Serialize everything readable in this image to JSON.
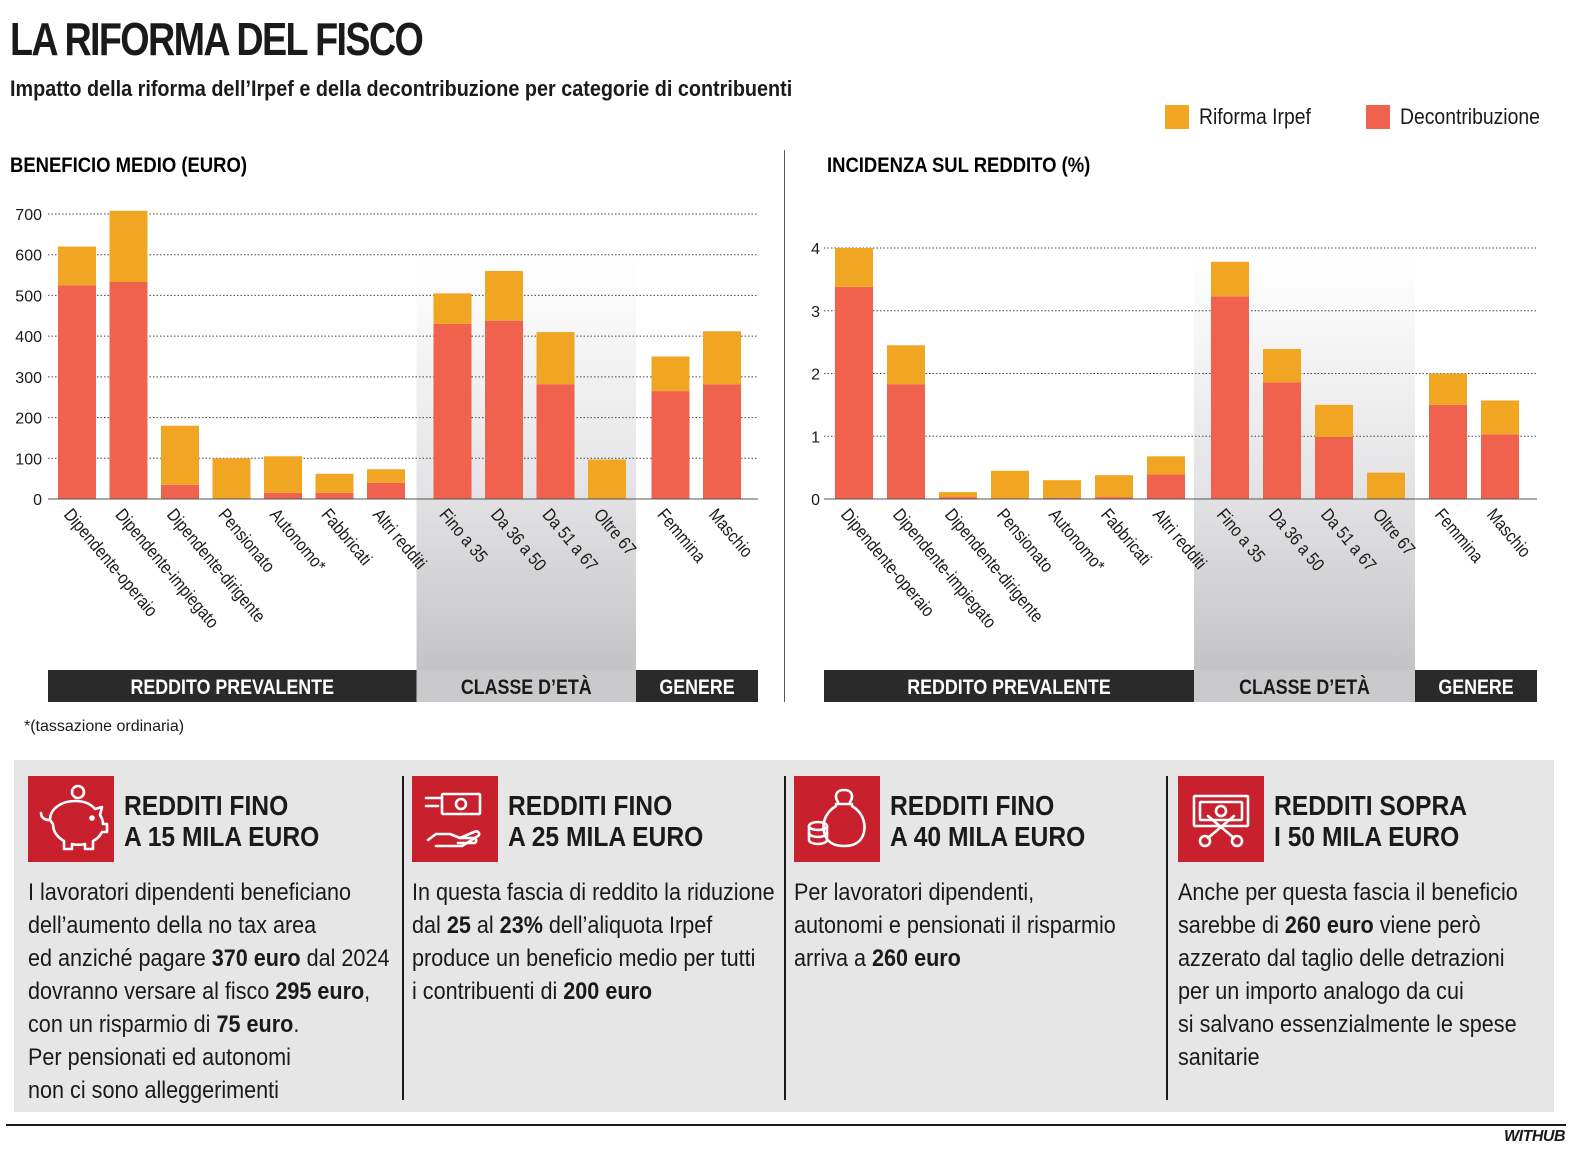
{
  "header": {
    "title": "LA RIFORMA DEL FISCO",
    "subtitle": "Impatto della riforma dell’Irpef e della decontribuzione per categorie di contribuenti"
  },
  "legend": [
    {
      "label": "Riforma Irpef",
      "color": "#f0a623"
    },
    {
      "label": "Decontribuzione",
      "color": "#f0624e"
    }
  ],
  "colors": {
    "irpef": "#f0a623",
    "decontribuzione": "#f0624e",
    "group_dark": "#2a2a2a",
    "group_light": "#c9c9cb",
    "panel_bg": "#e6e6e6",
    "icon_red": "#c8202c"
  },
  "chart_data": [
    {
      "type": "bar",
      "stacked": true,
      "title": "BENEFICIO MEDIO (EURO)",
      "categories": [
        "Dipendente-operaio",
        "Dipendente-impiegato",
        "Dipendente-dirigente",
        "Pensionato",
        "Autonomo*",
        "Fabbricati",
        "Altri redditi",
        "Fino a 35",
        "Da 36 a 50",
        "Da 51 a 67",
        "Oltre 67",
        "Femmina",
        "Maschio"
      ],
      "series": [
        {
          "name": "Decontribuzione",
          "values": [
            525,
            533,
            35,
            0,
            15,
            15,
            40,
            430,
            438,
            282,
            0,
            265,
            282
          ]
        },
        {
          "name": "Riforma Irpef",
          "values": [
            95,
            175,
            145,
            100,
            90,
            47,
            33,
            75,
            122,
            128,
            97,
            85,
            130
          ]
        }
      ],
      "yticks": [
        0,
        100,
        200,
        300,
        400,
        500,
        600,
        700
      ],
      "ylim": [
        0,
        700
      ],
      "groups": [
        {
          "label": "REDDITO PREVALENTE",
          "start": 0,
          "end": 6,
          "style": "dark"
        },
        {
          "label": "CLASSE D’ETÀ",
          "start": 7,
          "end": 10,
          "style": "light"
        },
        {
          "label": "GENERE",
          "start": 11,
          "end": 12,
          "style": "dark"
        }
      ],
      "grid": true
    },
    {
      "type": "bar",
      "stacked": true,
      "title": "INCIDENZA SUL REDDITO (%)",
      "categories": [
        "Dipendente-operaio",
        "Dipendente-impiegato",
        "Dipendente-dirigente",
        "Pensionato",
        "Autonomo*",
        "Fabbricati",
        "Altri redditi",
        "Fino a 35",
        "Da 36 a 50",
        "Da 51 a 67",
        "Oltre 67",
        "Femmina",
        "Maschio"
      ],
      "series": [
        {
          "name": "Decontribuzione",
          "values": [
            3.38,
            1.83,
            0.03,
            0,
            0.02,
            0.03,
            0.39,
            3.23,
            1.86,
            0.99,
            0,
            1.5,
            1.03
          ]
        },
        {
          "name": "Riforma Irpef",
          "values": [
            0.62,
            0.62,
            0.08,
            0.45,
            0.28,
            0.35,
            0.29,
            0.55,
            0.53,
            0.51,
            0.42,
            0.5,
            0.54
          ]
        }
      ],
      "yticks": [
        0,
        1,
        2,
        3,
        4
      ],
      "ylim": [
        0,
        4
      ],
      "groups": [
        {
          "label": "REDDITO PREVALENTE",
          "start": 0,
          "end": 6,
          "style": "dark"
        },
        {
          "label": "CLASSE D’ETÀ",
          "start": 7,
          "end": 10,
          "style": "light"
        },
        {
          "label": "GENERE",
          "start": 11,
          "end": 12,
          "style": "dark"
        }
      ],
      "grid": true
    }
  ],
  "note": "*(tassazione ordinaria)",
  "columns": [
    {
      "icon": "piggy-bank-icon",
      "head1": "REDDITI FINO",
      "head2": "A 15 MILA EURO",
      "lines": [
        [
          {
            "t": "I lavoratori dipendenti beneficiano"
          }
        ],
        [
          {
            "t": "dell’aumento della no tax area"
          }
        ],
        [
          {
            "t": "ed anziché pagare "
          },
          {
            "t": "370 euro",
            "b": true
          },
          {
            "t": " dal 2024"
          }
        ],
        [
          {
            "t": "dovranno versare al fisco "
          },
          {
            "t": "295 euro",
            "b": true
          },
          {
            "t": ","
          }
        ],
        [
          {
            "t": "con un risparmio di "
          },
          {
            "t": "75 euro",
            "b": true
          },
          {
            "t": "."
          }
        ],
        [
          {
            "t": "Per pensionati ed autonomi"
          }
        ],
        [
          {
            "t": "non ci sono alleggerimenti"
          }
        ]
      ]
    },
    {
      "icon": "hand-money-icon",
      "head1": "REDDITI FINO",
      "head2": "A 25 MILA EURO",
      "lines": [
        [
          {
            "t": "In questa fascia di reddito la riduzione"
          }
        ],
        [
          {
            "t": "dal "
          },
          {
            "t": "25",
            "b": true
          },
          {
            "t": " al "
          },
          {
            "t": "23%",
            "b": true
          },
          {
            "t": " dell’aliquota Irpef"
          }
        ],
        [
          {
            "t": "produce un beneficio medio per tutti"
          }
        ],
        [
          {
            "t": "i contribuenti di "
          },
          {
            "t": "200 euro",
            "b": true
          }
        ]
      ]
    },
    {
      "icon": "money-bag-icon",
      "head1": "REDDITI FINO",
      "head2": "A 40 MILA EURO",
      "lines": [
        [
          {
            "t": "Per lavoratori dipendenti,"
          }
        ],
        [
          {
            "t": "autonomi e pensionati il risparmio"
          }
        ],
        [
          {
            "t": "arriva a "
          },
          {
            "t": "260 euro",
            "b": true
          }
        ]
      ]
    },
    {
      "icon": "cut-banknote-icon",
      "head1": "REDDITI SOPRA",
      "head2": "I 50 MILA EURO",
      "lines": [
        [
          {
            "t": "Anche per questa fascia il beneficio"
          }
        ],
        [
          {
            "t": "sarebbe di "
          },
          {
            "t": "260 euro",
            "b": true
          },
          {
            "t": " viene però"
          }
        ],
        [
          {
            "t": "azzerato dal taglio delle detrazioni"
          }
        ],
        [
          {
            "t": "per un importo analogo da cui"
          }
        ],
        [
          {
            "t": "si salvano essenzialmente le spese"
          }
        ],
        [
          {
            "t": "sanitarie"
          }
        ]
      ]
    }
  ],
  "brand": "WITHUB"
}
